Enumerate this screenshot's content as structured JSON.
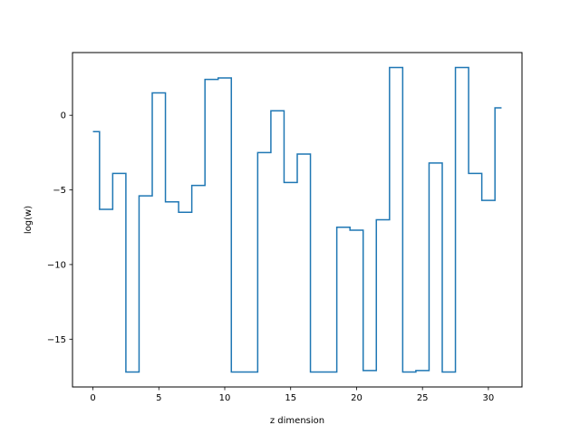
{
  "chart_data": {
    "type": "line",
    "drawstyle": "steps-mid",
    "title": "",
    "xlabel": "z dimension",
    "ylabel": "log(w)",
    "xlim": [
      -1.55,
      32.55
    ],
    "ylim": [
      -18.2,
      4.2
    ],
    "xticks": [
      0,
      5,
      10,
      15,
      20,
      25,
      30
    ],
    "yticks": [
      -15,
      -10,
      -5,
      0
    ],
    "grid": false,
    "legend": "none",
    "line_color": "#1f77b4",
    "series": [
      {
        "x": [
          0,
          1,
          2,
          3,
          4,
          5,
          6,
          7,
          8,
          9,
          10,
          11,
          12,
          13,
          14,
          15,
          16,
          17,
          18,
          19,
          20,
          21,
          22,
          23,
          24,
          25,
          26,
          27,
          28,
          29,
          30,
          31
        ],
        "values": [
          -1.1,
          -6.3,
          -3.9,
          -17.2,
          -5.4,
          1.5,
          -5.8,
          -6.5,
          -4.7,
          2.4,
          2.5,
          -17.2,
          -17.2,
          -2.5,
          0.3,
          -4.5,
          -2.6,
          -17.2,
          -17.2,
          -7.5,
          -7.7,
          -17.1,
          -7.0,
          3.2,
          -17.2,
          -17.1,
          -3.2,
          -17.2,
          3.2,
          -3.9,
          -5.7,
          0.5
        ]
      }
    ]
  }
}
